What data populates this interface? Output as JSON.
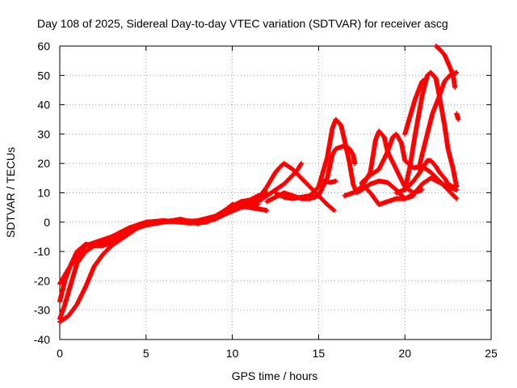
{
  "chart_data": {
    "type": "scatter",
    "title": "Day 108 of 2025, Sidereal Day-to-day VTEC variation (SDTVAR) for receiver ascg",
    "xlabel": "GPS time / hours",
    "ylabel": "SDTVAR / TECUs",
    "xlim": [
      0,
      25
    ],
    "ylim": [
      -40,
      60
    ],
    "x_ticks": [
      "0",
      "5",
      "10",
      "15",
      "20",
      "25"
    ],
    "y_ticks": [
      "-40",
      "-30",
      "-20",
      "-10",
      "0",
      "10",
      "20",
      "30",
      "40",
      "50",
      "60"
    ],
    "grid": true,
    "marker": "+",
    "color": "#ff0000",
    "series": [
      {
        "name": "track-1",
        "points": [
          [
            0,
            -33
          ],
          [
            0.3,
            -28
          ],
          [
            0.6,
            -22
          ],
          [
            1.0,
            -14
          ],
          [
            1.5,
            -10
          ],
          [
            2.0,
            -8
          ],
          [
            2.5,
            -7
          ],
          [
            3.0,
            -6
          ],
          [
            3.5,
            -4
          ],
          [
            4.0,
            -2.5
          ],
          [
            4.5,
            -1.5
          ],
          [
            5.0,
            -0.5
          ],
          [
            5.5,
            0
          ],
          [
            6.5,
            0.3
          ],
          [
            7.5,
            -0.3
          ],
          [
            8.5,
            0
          ],
          [
            9.5,
            2.5
          ],
          [
            10.5,
            5
          ],
          [
            11.5,
            6
          ]
        ]
      },
      {
        "name": "track-2",
        "points": [
          [
            0,
            -27
          ],
          [
            0.3,
            -20
          ],
          [
            0.6,
            -15
          ],
          [
            1.0,
            -10
          ],
          [
            1.5,
            -7.5
          ],
          [
            2.0,
            -8
          ],
          [
            2.5,
            -8
          ],
          [
            3.0,
            -7
          ],
          [
            3.5,
            -5
          ],
          [
            4.0,
            -3
          ],
          [
            4.5,
            -2
          ],
          [
            5.0,
            -0.7
          ],
          [
            6.0,
            0
          ],
          [
            7.0,
            0.6
          ],
          [
            8.0,
            0.2
          ],
          [
            9.0,
            1
          ],
          [
            10.0,
            4
          ],
          [
            10.5,
            7
          ],
          [
            11.0,
            7.5
          ],
          [
            11.5,
            9
          ],
          [
            12.0,
            10
          ]
        ]
      },
      {
        "name": "track-3",
        "points": [
          [
            0,
            -34
          ],
          [
            0.5,
            -32
          ],
          [
            1.0,
            -28
          ],
          [
            1.5,
            -22
          ],
          [
            2.0,
            -15
          ],
          [
            2.5,
            -11
          ],
          [
            3.0,
            -8
          ],
          [
            3.5,
            -6
          ],
          [
            4.0,
            -4
          ],
          [
            4.5,
            -2
          ],
          [
            5.0,
            -1
          ],
          [
            6.0,
            0
          ],
          [
            7.0,
            1
          ],
          [
            8.0,
            -0.5
          ],
          [
            9.0,
            1.5
          ],
          [
            10.0,
            6
          ],
          [
            11.0,
            5
          ],
          [
            12.0,
            4
          ]
        ]
      },
      {
        "name": "track-4",
        "points": [
          [
            0,
            -21
          ],
          [
            0.5,
            -16
          ],
          [
            1.0,
            -12
          ],
          [
            1.5,
            -8
          ],
          [
            2.0,
            -7
          ],
          [
            2.5,
            -6
          ],
          [
            3.0,
            -5
          ],
          [
            3.5,
            -3.5
          ],
          [
            4.0,
            -2
          ],
          [
            4.5,
            -1
          ],
          [
            5.0,
            0
          ],
          [
            6.0,
            0.5
          ],
          [
            7.0,
            0
          ],
          [
            8.0,
            0.5
          ],
          [
            9.0,
            2
          ],
          [
            10.0,
            5.5
          ],
          [
            10.5,
            7
          ],
          [
            11.0,
            6
          ]
        ]
      },
      {
        "name": "track-5",
        "points": [
          [
            11.0,
            5.5
          ],
          [
            11.5,
            7
          ],
          [
            12.0,
            9
          ],
          [
            12.5,
            11
          ],
          [
            13.0,
            13
          ],
          [
            13.5,
            16
          ],
          [
            13.8,
            18
          ],
          [
            14.0,
            20
          ]
        ]
      },
      {
        "name": "track-6",
        "points": [
          [
            11.0,
            6.5
          ],
          [
            11.5,
            8
          ],
          [
            12.0,
            12
          ],
          [
            12.5,
            17
          ],
          [
            12.8,
            19
          ],
          [
            13.0,
            20
          ],
          [
            13.5,
            18
          ],
          [
            14.0,
            15
          ],
          [
            14.5,
            12
          ],
          [
            15.0,
            9
          ],
          [
            15.5,
            6
          ],
          [
            15.9,
            4
          ]
        ]
      },
      {
        "name": "track-7",
        "points": [
          [
            12.0,
            7
          ],
          [
            12.5,
            8.5
          ],
          [
            13.0,
            10
          ],
          [
            13.5,
            9
          ],
          [
            14.0,
            8
          ],
          [
            14.5,
            8
          ],
          [
            15.0,
            9
          ],
          [
            15.5,
            15
          ],
          [
            15.8,
            23
          ],
          [
            16.0,
            25
          ],
          [
            16.5,
            26
          ],
          [
            16.8,
            25
          ],
          [
            17.0,
            23
          ],
          [
            17.1,
            20
          ]
        ]
      },
      {
        "name": "track-8",
        "points": [
          [
            12.5,
            10
          ],
          [
            13.0,
            8.5
          ],
          [
            13.5,
            8
          ],
          [
            14.0,
            8.5
          ],
          [
            14.5,
            9
          ],
          [
            15.0,
            12
          ],
          [
            15.5,
            22
          ],
          [
            15.8,
            32
          ],
          [
            16.0,
            35
          ],
          [
            16.3,
            33
          ],
          [
            16.5,
            28
          ],
          [
            16.8,
            20
          ],
          [
            17.0,
            13
          ],
          [
            17.2,
            10
          ],
          [
            17.5,
            11
          ],
          [
            18.0,
            13
          ],
          [
            18.5,
            14
          ],
          [
            19.0,
            13.5
          ],
          [
            19.5,
            11
          ],
          [
            20.0,
            8
          ],
          [
            20.5,
            9
          ]
        ]
      },
      {
        "name": "track-9",
        "points": [
          [
            15.3,
            14
          ],
          [
            15.7,
            13.5
          ],
          [
            16.0,
            14
          ]
        ]
      },
      {
        "name": "track-10",
        "points": [
          [
            16.5,
            9
          ],
          [
            17.0,
            10
          ],
          [
            17.5,
            12
          ],
          [
            18.0,
            17
          ],
          [
            18.3,
            28
          ],
          [
            18.5,
            31
          ],
          [
            18.8,
            29
          ],
          [
            19.0,
            24
          ],
          [
            19.5,
            18
          ],
          [
            20.0,
            12
          ],
          [
            20.5,
            10
          ],
          [
            21.0,
            11
          ]
        ]
      },
      {
        "name": "track-11",
        "points": [
          [
            17.5,
            13
          ],
          [
            18.0,
            10
          ],
          [
            18.5,
            6
          ],
          [
            19.0,
            7
          ],
          [
            19.5,
            8
          ],
          [
            20.0,
            8
          ],
          [
            20.5,
            9.5
          ],
          [
            21.0,
            13
          ],
          [
            21.5,
            15
          ],
          [
            22.0,
            13.5
          ],
          [
            22.5,
            12
          ],
          [
            23.0,
            11
          ]
        ]
      },
      {
        "name": "track-12",
        "points": [
          [
            17.5,
            13.5
          ],
          [
            18.0,
            16
          ],
          [
            18.5,
            18
          ],
          [
            19.0,
            24
          ],
          [
            19.3,
            29
          ],
          [
            19.5,
            30
          ],
          [
            19.8,
            27
          ],
          [
            20.0,
            21
          ],
          [
            20.5,
            18.5
          ],
          [
            21.0,
            19
          ],
          [
            21.5,
            17
          ],
          [
            22.0,
            14
          ],
          [
            22.5,
            11
          ],
          [
            23.0,
            8
          ]
        ]
      },
      {
        "name": "track-13",
        "points": [
          [
            20.0,
            11
          ],
          [
            20.3,
            19
          ],
          [
            20.6,
            30
          ],
          [
            21.0,
            43
          ],
          [
            21.3,
            50
          ],
          [
            21.5,
            51
          ],
          [
            21.8,
            49
          ],
          [
            22.0,
            43
          ],
          [
            22.3,
            33
          ],
          [
            22.5,
            25
          ],
          [
            22.8,
            18
          ],
          [
            23.0,
            12
          ]
        ]
      },
      {
        "name": "track-14",
        "points": [
          [
            19.5,
            10
          ],
          [
            20.0,
            11
          ],
          [
            20.5,
            14
          ],
          [
            21.0,
            18
          ],
          [
            21.3,
            21
          ],
          [
            21.5,
            21
          ],
          [
            21.8,
            19
          ],
          [
            22.0,
            17
          ],
          [
            22.3,
            15
          ],
          [
            22.5,
            13
          ],
          [
            22.8,
            12
          ],
          [
            23.0,
            11
          ]
        ]
      },
      {
        "name": "track-15",
        "points": [
          [
            20.8,
            18
          ],
          [
            21.0,
            23
          ],
          [
            21.3,
            30
          ],
          [
            21.6,
            37
          ],
          [
            22.0,
            43
          ],
          [
            22.3,
            48
          ],
          [
            22.6,
            50
          ],
          [
            23.0,
            51
          ]
        ]
      },
      {
        "name": "track-16",
        "points": [
          [
            21.8,
            60
          ],
          [
            22.0,
            59
          ],
          [
            22.3,
            57
          ],
          [
            22.6,
            53
          ],
          [
            22.8,
            50
          ],
          [
            22.9,
            46
          ]
        ]
      },
      {
        "name": "track-17",
        "points": [
          [
            23.0,
            37
          ],
          [
            23.1,
            35
          ]
        ]
      },
      {
        "name": "track-18",
        "points": [
          [
            20.0,
            30
          ],
          [
            20.3,
            36
          ],
          [
            20.6,
            42
          ],
          [
            21.0,
            48
          ],
          [
            21.3,
            49
          ]
        ]
      }
    ]
  }
}
